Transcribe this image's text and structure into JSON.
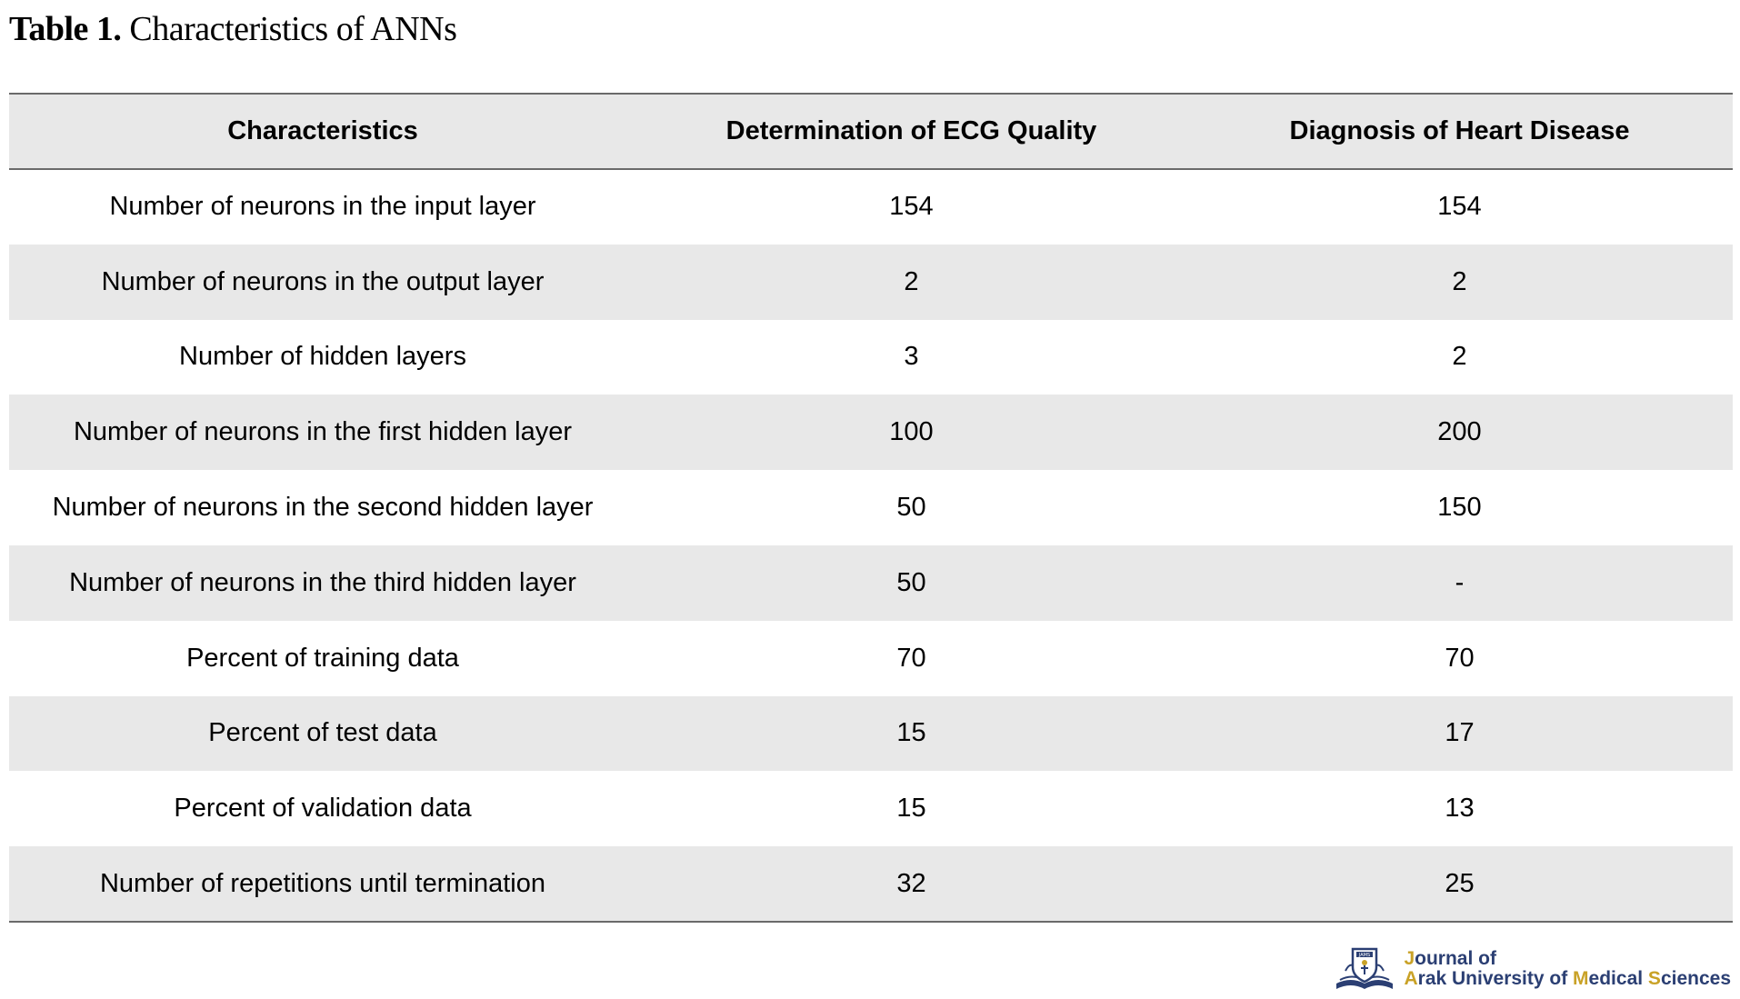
{
  "caption": {
    "label": "Table 1.",
    "title": "Characteristics of ANNs"
  },
  "table": {
    "headers": [
      "Characteristics",
      "Determination of ECG Quality",
      "Diagnosis of Heart Disease"
    ],
    "rows": [
      [
        "Number of neurons in the input layer",
        "154",
        "154"
      ],
      [
        "Number of neurons in the output layer",
        "2",
        "2"
      ],
      [
        "Number of hidden layers",
        "3",
        "2"
      ],
      [
        "Number of neurons in the first hidden layer",
        "100",
        "200"
      ],
      [
        "Number of neurons in the second hidden layer",
        "50",
        "150"
      ],
      [
        "Number of neurons in the third hidden layer",
        "50",
        "-"
      ],
      [
        "Percent of training data",
        "70",
        "70"
      ],
      [
        "Percent of test data",
        "15",
        "17"
      ],
      [
        "Percent of validation data",
        "15",
        "13"
      ],
      [
        "Number of repetitions until termination",
        "32",
        "25"
      ]
    ]
  },
  "logo": {
    "line1": "Journal of",
    "line2_prefix": "Arak University of ",
    "line2_m": "M",
    "line2_mid": "edical ",
    "line2_s": "S",
    "line2_end": "ciences",
    "emblem_text": "JAMS",
    "colors": {
      "navy": "#2b3f73",
      "gold": "#c9a227"
    }
  },
  "colors": {
    "row_shade": "#e8e8e8",
    "rule": "#6a6a6a"
  }
}
